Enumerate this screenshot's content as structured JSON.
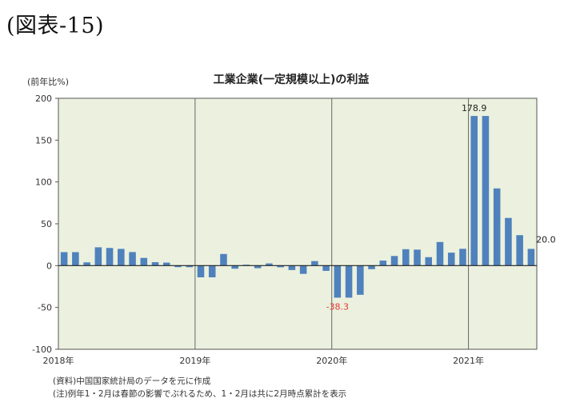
{
  "figure_label": "(図表-15)",
  "notes": [
    "(資料)中国国家統計局のデータを元に作成",
    "(注)例年1・2月は春節の影響でぶれるため、1・2月は共に2月時点累計を表示"
  ],
  "chart_data": {
    "type": "bar",
    "title": "工業企業(一定規模以上)の利益",
    "ylabel": "(前年比%)",
    "xlabel": "",
    "ylim": [
      -100,
      200
    ],
    "yticks": [
      -100,
      -50,
      0,
      50,
      100,
      150,
      200
    ],
    "grid": false,
    "legend": "none",
    "bar_color": "#4f81bd",
    "plot_bg": "#ebf1de",
    "year_labels": [
      {
        "label": "2018年",
        "index": 0
      },
      {
        "label": "2019年",
        "index": 12
      },
      {
        "label": "2020年",
        "index": 24
      },
      {
        "label": "2021年",
        "index": 36
      }
    ],
    "categories": [
      "2018-01",
      "2018-02",
      "2018-03",
      "2018-04",
      "2018-05",
      "2018-06",
      "2018-07",
      "2018-08",
      "2018-09",
      "2018-10",
      "2018-11",
      "2018-12",
      "2019-01",
      "2019-02",
      "2019-03",
      "2019-04",
      "2019-05",
      "2019-06",
      "2019-07",
      "2019-08",
      "2019-09",
      "2019-10",
      "2019-11",
      "2019-12",
      "2020-01",
      "2020-02",
      "2020-03",
      "2020-04",
      "2020-05",
      "2020-06",
      "2020-07",
      "2020-08",
      "2020-09",
      "2020-10",
      "2020-11",
      "2020-12",
      "2021-01",
      "2021-02",
      "2021-03",
      "2021-04",
      "2021-05",
      "2021-06"
    ],
    "values": [
      16.1,
      16.1,
      3.9,
      21.9,
      21.1,
      20.0,
      16.2,
      9.2,
      4.1,
      3.6,
      -1.8,
      -1.9,
      -14.0,
      -14.0,
      13.9,
      -3.7,
      1.1,
      -3.1,
      2.6,
      -2.0,
      -5.3,
      -9.9,
      5.4,
      -6.3,
      -38.3,
      -38.3,
      -34.9,
      -4.3,
      6.0,
      11.5,
      19.6,
      19.1,
      10.1,
      28.2,
      15.5,
      20.1,
      178.9,
      178.9,
      92.3,
      57.0,
      36.4,
      20.0
    ],
    "data_labels": [
      {
        "index": 24,
        "text": "-38.3",
        "color": "#e53935"
      },
      {
        "index": 36,
        "text": "178.9",
        "color": "#222222"
      },
      {
        "index": 41,
        "text": "20.0",
        "color": "#222222"
      }
    ]
  }
}
